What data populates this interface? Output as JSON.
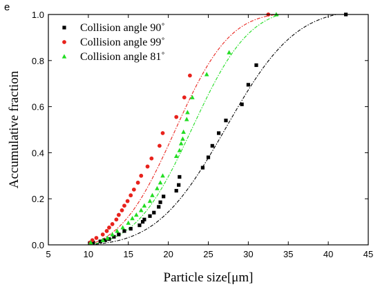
{
  "panel_label": "e",
  "chart_data": {
    "type": "scatter",
    "title": "",
    "xlabel": "Particle size[μm]",
    "ylabel": "Accumulative fraction",
    "xlim": [
      5,
      45
    ],
    "ylim": [
      0,
      1.0
    ],
    "xticks": [
      5,
      10,
      15,
      20,
      25,
      30,
      35,
      40,
      45
    ],
    "yticks": [
      0.0,
      0.2,
      0.4,
      0.6,
      0.8,
      1.0
    ],
    "xtick_labels": [
      "5",
      "10",
      "15",
      "20",
      "25",
      "30",
      "35",
      "40",
      "45"
    ],
    "ytick_labels": [
      "0.0",
      "0.2",
      "0.4",
      "0.6",
      "0.8",
      "1.0"
    ],
    "grid": false,
    "legend_position": "top-left",
    "series": [
      {
        "name": "Collision angle 90˚",
        "color": "#000000",
        "marker": "square",
        "fit": {
          "center": 27.2,
          "sigma": 6.8,
          "x_range": [
            10,
            41
          ]
        },
        "points": [
          [
            10.6,
            0.01
          ],
          [
            11.5,
            0.015
          ],
          [
            12.1,
            0.02
          ],
          [
            12.6,
            0.025
          ],
          [
            13.2,
            0.035
          ],
          [
            13.8,
            0.045
          ],
          [
            14.5,
            0.06
          ],
          [
            15.3,
            0.07
          ],
          [
            16.4,
            0.085
          ],
          [
            16.8,
            0.1
          ],
          [
            17.0,
            0.11
          ],
          [
            17.7,
            0.125
          ],
          [
            18.2,
            0.14
          ],
          [
            18.8,
            0.165
          ],
          [
            19.0,
            0.185
          ],
          [
            19.4,
            0.21
          ],
          [
            21.0,
            0.235
          ],
          [
            21.3,
            0.26
          ],
          [
            21.4,
            0.295
          ],
          [
            24.3,
            0.335
          ],
          [
            25.0,
            0.38
          ],
          [
            25.5,
            0.43
          ],
          [
            26.3,
            0.485
          ],
          [
            27.2,
            0.54
          ],
          [
            29.2,
            0.61
          ],
          [
            30.0,
            0.695
          ],
          [
            31.0,
            0.78
          ],
          [
            42.2,
            1.0
          ]
        ]
      },
      {
        "name": "Collision angle 99˚",
        "color": "#e8221c",
        "marker": "circle",
        "fit": {
          "center": 20.8,
          "sigma": 5.4,
          "x_range": [
            10,
            33.5
          ]
        },
        "points": [
          [
            10.2,
            0.01
          ],
          [
            10.5,
            0.02
          ],
          [
            11.0,
            0.03
          ],
          [
            11.8,
            0.045
          ],
          [
            12.3,
            0.06
          ],
          [
            12.6,
            0.075
          ],
          [
            13.0,
            0.09
          ],
          [
            13.5,
            0.11
          ],
          [
            13.8,
            0.13
          ],
          [
            14.2,
            0.15
          ],
          [
            14.5,
            0.17
          ],
          [
            14.9,
            0.19
          ],
          [
            15.3,
            0.215
          ],
          [
            15.7,
            0.24
          ],
          [
            16.2,
            0.27
          ],
          [
            16.6,
            0.3
          ],
          [
            17.4,
            0.34
          ],
          [
            17.9,
            0.375
          ],
          [
            18.9,
            0.43
          ],
          [
            19.3,
            0.485
          ],
          [
            21.0,
            0.555
          ],
          [
            22.0,
            0.64
          ],
          [
            22.7,
            0.735
          ],
          [
            32.5,
            1.0
          ]
        ]
      },
      {
        "name": "Collision angle 81˚",
        "color": "#22dd22",
        "marker": "triangle",
        "fit": {
          "center": 23.0,
          "sigma": 5.6,
          "x_range": [
            10,
            34
          ]
        },
        "points": [
          [
            10.3,
            0.01
          ],
          [
            11.8,
            0.02
          ],
          [
            12.4,
            0.03
          ],
          [
            13.0,
            0.045
          ],
          [
            13.6,
            0.06
          ],
          [
            14.3,
            0.075
          ],
          [
            15.0,
            0.095
          ],
          [
            15.5,
            0.115
          ],
          [
            16.0,
            0.13
          ],
          [
            16.6,
            0.15
          ],
          [
            17.0,
            0.17
          ],
          [
            17.7,
            0.19
          ],
          [
            18.0,
            0.215
          ],
          [
            18.6,
            0.245
          ],
          [
            19.0,
            0.27
          ],
          [
            19.3,
            0.3
          ],
          [
            21.0,
            0.385
          ],
          [
            21.4,
            0.41
          ],
          [
            21.6,
            0.44
          ],
          [
            21.8,
            0.46
          ],
          [
            21.9,
            0.49
          ],
          [
            22.3,
            0.545
          ],
          [
            22.4,
            0.575
          ],
          [
            23.0,
            0.64
          ],
          [
            24.8,
            0.74
          ],
          [
            27.6,
            0.835
          ],
          [
            33.5,
            1.0
          ]
        ]
      }
    ]
  }
}
